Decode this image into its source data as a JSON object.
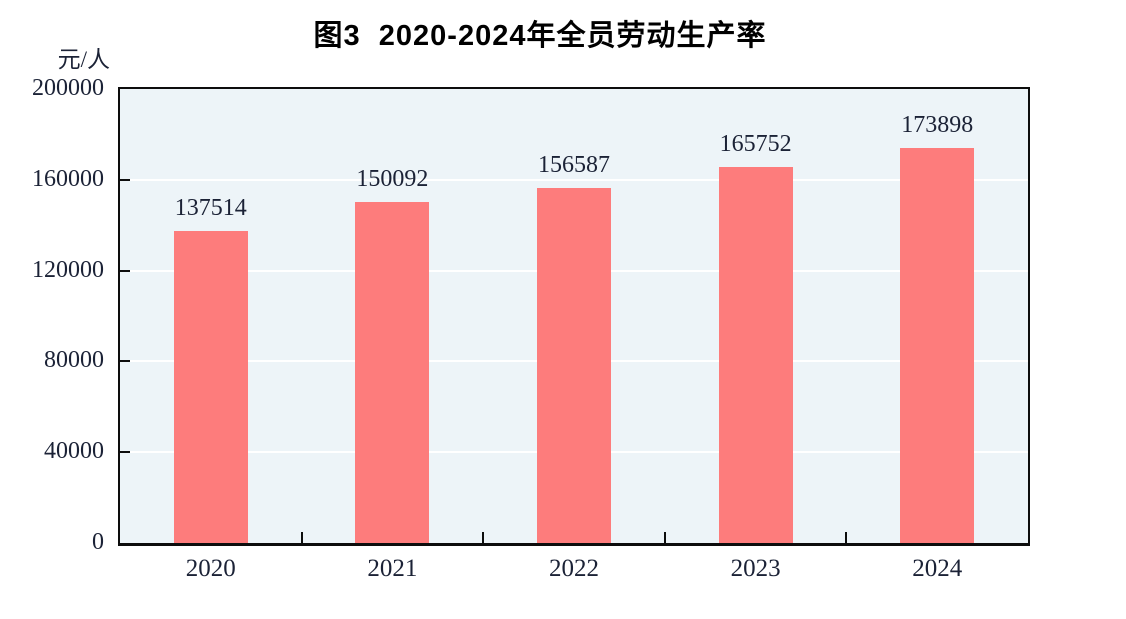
{
  "chart": {
    "title": "图3  2020-2024年全员劳动生产率",
    "y_unit": "元/人"
  },
  "chart_data": {
    "type": "bar",
    "title": "图3  2020-2024年全员劳动生产率",
    "categories": [
      "2020",
      "2021",
      "2022",
      "2023",
      "2024"
    ],
    "values": [
      137514,
      150092,
      156587,
      165752,
      173898
    ],
    "data_labels": [
      "137514",
      "150092",
      "156587",
      "165752",
      "173898"
    ],
    "xlabel": "",
    "ylabel": "元/人",
    "ylim": [
      0,
      200000
    ],
    "yticks": [
      0,
      40000,
      80000,
      120000,
      160000,
      200000
    ],
    "ytick_labels": [
      "0",
      "40000",
      "80000",
      "120000",
      "160000",
      "200000"
    ],
    "grid": "horizontal",
    "legend": "none",
    "colors": {
      "bar": "#fd7c7c",
      "plot_background": "#edf4f8",
      "axis_border": "#0d0d0d",
      "gridline": "#ffffff",
      "tick_mark": "#0d0d0d",
      "number_text": "#1b2236",
      "title_text": "#000000"
    }
  }
}
